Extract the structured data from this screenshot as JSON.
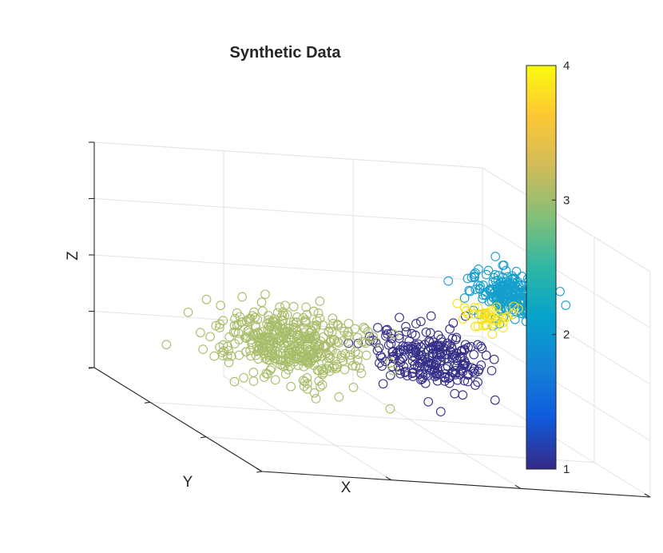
{
  "chart_data": {
    "type": "scatter",
    "title": "Synthetic Data",
    "xlabel": "X",
    "ylabel": "Y",
    "zlabel": "Z",
    "grid": true,
    "marker": "open-circle",
    "colorbar": {
      "range": [
        1,
        4
      ],
      "ticks": [
        1,
        2,
        3,
        4
      ],
      "colormap": "parula",
      "placement": "right"
    },
    "series": [
      {
        "value": 1,
        "color": "#342e88",
        "center": [
          0.62,
          0.42,
          0.38
        ],
        "spread": [
          0.07,
          0.07,
          0.06
        ],
        "count": 240
      },
      {
        "value": 2,
        "color": "#159fce",
        "center": [
          0.9,
          0.63,
          0.6
        ],
        "spread": [
          0.045,
          0.045,
          0.05
        ],
        "count": 230
      },
      {
        "value": 3,
        "color": "#a8bd6a",
        "center": [
          0.2,
          0.28,
          0.45
        ],
        "spread": [
          0.085,
          0.085,
          0.07
        ],
        "count": 420
      },
      {
        "value": 4,
        "color": "#f6e214",
        "center": [
          0.95,
          0.85,
          0.4
        ],
        "spread": [
          0.03,
          0.03,
          0.03
        ],
        "count": 40
      }
    ]
  }
}
